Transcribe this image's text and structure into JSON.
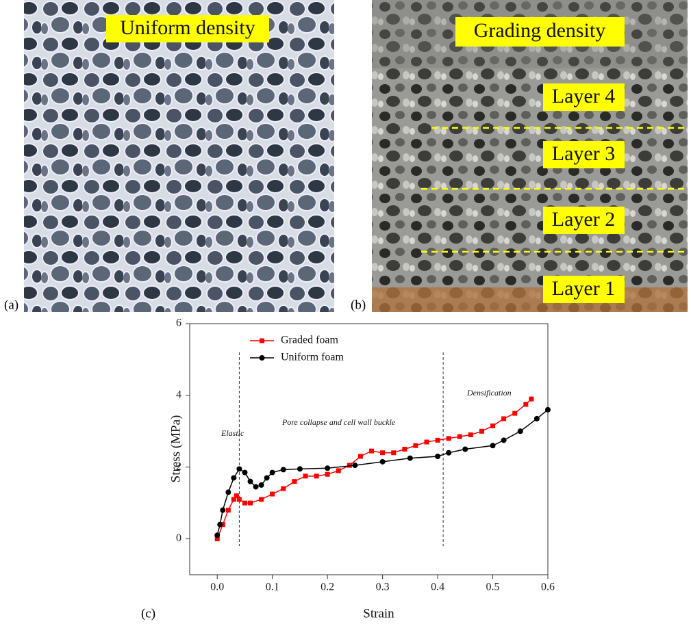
{
  "panels": [
    {
      "label": "(a)",
      "title": "Uniform density"
    },
    {
      "label": "(b)",
      "title": "Grading density",
      "layers": [
        "Layer 4",
        "Layer 3",
        "Layer 2",
        "Layer 1"
      ]
    }
  ],
  "chart_data": {
    "type": "line",
    "panel_label": "(c)",
    "x_label": "Strain",
    "y_label": "Stress (MPa)",
    "xlim": [
      -0.05,
      0.6
    ],
    "xticks": [
      {
        "value": 0,
        "label": "0.0"
      },
      0.1,
      0.2,
      0.3,
      0.4,
      0.5,
      0.6
    ],
    "ylim": [
      -1,
      6
    ],
    "yticks": [
      0,
      2,
      4,
      6
    ],
    "grid": false,
    "legend": "upper left",
    "vlines": [
      0.04,
      0.41
    ],
    "annotations": [
      "Elastic",
      "Pore collapse and cell wall buckle",
      "Densification"
    ],
    "series": [
      {
        "name": "Graded foam",
        "color": "#ff0000",
        "marker": "square",
        "x": [
          0,
          0.01,
          0.02,
          0.03,
          0.035,
          0.04,
          0.05,
          0.06,
          0.08,
          0.1,
          0.12,
          0.14,
          0.16,
          0.18,
          0.2,
          0.22,
          0.24,
          0.26,
          0.28,
          0.3,
          0.32,
          0.34,
          0.36,
          0.38,
          0.4,
          0.42,
          0.44,
          0.46,
          0.48,
          0.5,
          0.52,
          0.54,
          0.56,
          0.57
        ],
        "values": [
          0,
          0.4,
          0.8,
          1.1,
          1.2,
          1.1,
          1.0,
          1.0,
          1.1,
          1.25,
          1.4,
          1.6,
          1.75,
          1.75,
          1.8,
          1.9,
          2.05,
          2.3,
          2.45,
          2.4,
          2.4,
          2.5,
          2.6,
          2.7,
          2.75,
          2.8,
          2.85,
          2.9,
          3.0,
          3.15,
          3.35,
          3.5,
          3.75,
          3.9
        ]
      },
      {
        "name": "Uniform foam",
        "color": "#000000",
        "marker": "circle",
        "x": [
          0,
          0.005,
          0.01,
          0.02,
          0.03,
          0.04,
          0.05,
          0.06,
          0.07,
          0.08,
          0.09,
          0.1,
          0.12,
          0.15,
          0.2,
          0.25,
          0.3,
          0.35,
          0.4,
          0.42,
          0.45,
          0.5,
          0.52,
          0.55,
          0.58,
          0.6
        ],
        "values": [
          0.1,
          0.4,
          0.8,
          1.3,
          1.7,
          1.95,
          1.85,
          1.6,
          1.45,
          1.5,
          1.7,
          1.85,
          1.93,
          1.95,
          1.97,
          2.05,
          2.15,
          2.25,
          2.3,
          2.4,
          2.5,
          2.6,
          2.75,
          3.0,
          3.35,
          3.6
        ]
      }
    ]
  }
}
